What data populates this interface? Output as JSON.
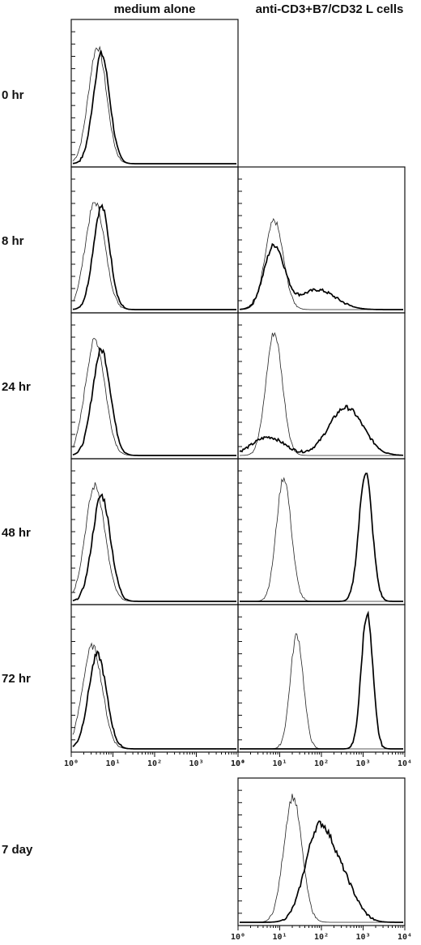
{
  "figure": {
    "column_headers": [
      "medium alone",
      "anti-CD3+B7/CD32 L cells"
    ],
    "row_labels": [
      "0 hr",
      "8 hr",
      "24 hr",
      "48 hr",
      "72 hr",
      "7 day"
    ],
    "x_ticks": [
      "10⁰",
      "10¹",
      "10²",
      "10³",
      "10⁴"
    ]
  },
  "chart_data": {
    "type": "area",
    "title": "",
    "xlabel": "",
    "ylabel": "",
    "x_scale": "log",
    "xlim": [
      1,
      10000
    ],
    "ylim": [
      0,
      1
    ],
    "grid": false,
    "panels": [
      {
        "row": "0 hr",
        "column": "medium alone",
        "series": [
          {
            "style": "thin",
            "peaks": [
              {
                "x": 4.0,
                "h": 0.82,
                "w": 0.22
              }
            ]
          },
          {
            "style": "thick",
            "peaks": [
              {
                "x": 5.0,
                "h": 0.77,
                "w": 0.2
              }
            ]
          }
        ]
      },
      {
        "row": "8 hr",
        "column": "medium alone",
        "series": [
          {
            "style": "thin",
            "peaks": [
              {
                "x": 3.5,
                "h": 0.76,
                "w": 0.24
              }
            ]
          },
          {
            "style": "thick",
            "peaks": [
              {
                "x": 5.0,
                "h": 0.73,
                "w": 0.2
              }
            ]
          }
        ]
      },
      {
        "row": "8 hr",
        "column": "anti-CD3+B7/CD32 L cells",
        "series": [
          {
            "style": "thin",
            "peaks": [
              {
                "x": 7.0,
                "h": 0.63,
                "w": 0.22
              }
            ]
          },
          {
            "style": "thick",
            "peaks": [
              {
                "x": 7.0,
                "h": 0.45,
                "w": 0.25
              },
              {
                "x": 80,
                "h": 0.14,
                "w": 0.45
              }
            ]
          }
        ]
      },
      {
        "row": "24 hr",
        "column": "medium alone",
        "series": [
          {
            "style": "thin",
            "peaks": [
              {
                "x": 3.5,
                "h": 0.82,
                "w": 0.24
              }
            ]
          },
          {
            "style": "thick",
            "peaks": [
              {
                "x": 5.0,
                "h": 0.75,
                "w": 0.22
              }
            ]
          }
        ]
      },
      {
        "row": "24 hr",
        "column": "anti-CD3+B7/CD32 L cells",
        "series": [
          {
            "style": "thin",
            "peaks": [
              {
                "x": 7.0,
                "h": 0.87,
                "w": 0.2
              }
            ]
          },
          {
            "style": "thick",
            "peaks": [
              {
                "x": 5.0,
                "h": 0.13,
                "w": 0.4
              },
              {
                "x": 400,
                "h": 0.34,
                "w": 0.42
              }
            ]
          }
        ]
      },
      {
        "row": "48 hr",
        "column": "medium alone",
        "series": [
          {
            "style": "thin",
            "peaks": [
              {
                "x": 3.5,
                "h": 0.82,
                "w": 0.24
              }
            ]
          },
          {
            "style": "thick",
            "peaks": [
              {
                "x": 5.0,
                "h": 0.75,
                "w": 0.22
              }
            ]
          }
        ]
      },
      {
        "row": "48 hr",
        "column": "anti-CD3+B7/CD32 L cells",
        "series": [
          {
            "style": "thin",
            "peaks": [
              {
                "x": 12,
                "h": 0.88,
                "w": 0.18
              }
            ]
          },
          {
            "style": "thick",
            "peaks": [
              {
                "x": 1200,
                "h": 0.92,
                "w": 0.16
              }
            ]
          }
        ]
      },
      {
        "row": "72 hr",
        "column": "medium alone",
        "series": [
          {
            "style": "thin",
            "peaks": [
              {
                "x": 3.0,
                "h": 0.72,
                "w": 0.24
              }
            ]
          },
          {
            "style": "thick",
            "peaks": [
              {
                "x": 4.0,
                "h": 0.66,
                "w": 0.22
              }
            ]
          }
        ]
      },
      {
        "row": "72 hr",
        "column": "anti-CD3+B7/CD32 L cells",
        "series": [
          {
            "style": "thin",
            "peaks": [
              {
                "x": 25,
                "h": 0.8,
                "w": 0.16
              }
            ]
          },
          {
            "style": "thick",
            "peaks": [
              {
                "x": 1300,
                "h": 0.95,
                "w": 0.14
              }
            ]
          }
        ]
      },
      {
        "row": "7 day",
        "column": "anti-CD3+B7/CD32 L cells",
        "series": [
          {
            "style": "thin",
            "peaks": [
              {
                "x": 20,
                "h": 0.88,
                "w": 0.22
              }
            ]
          },
          {
            "style": "thick",
            "peaks": [
              {
                "x": 80,
                "h": 0.6,
                "w": 0.32
              },
              {
                "x": 300,
                "h": 0.3,
                "w": 0.35
              }
            ]
          }
        ]
      }
    ]
  }
}
